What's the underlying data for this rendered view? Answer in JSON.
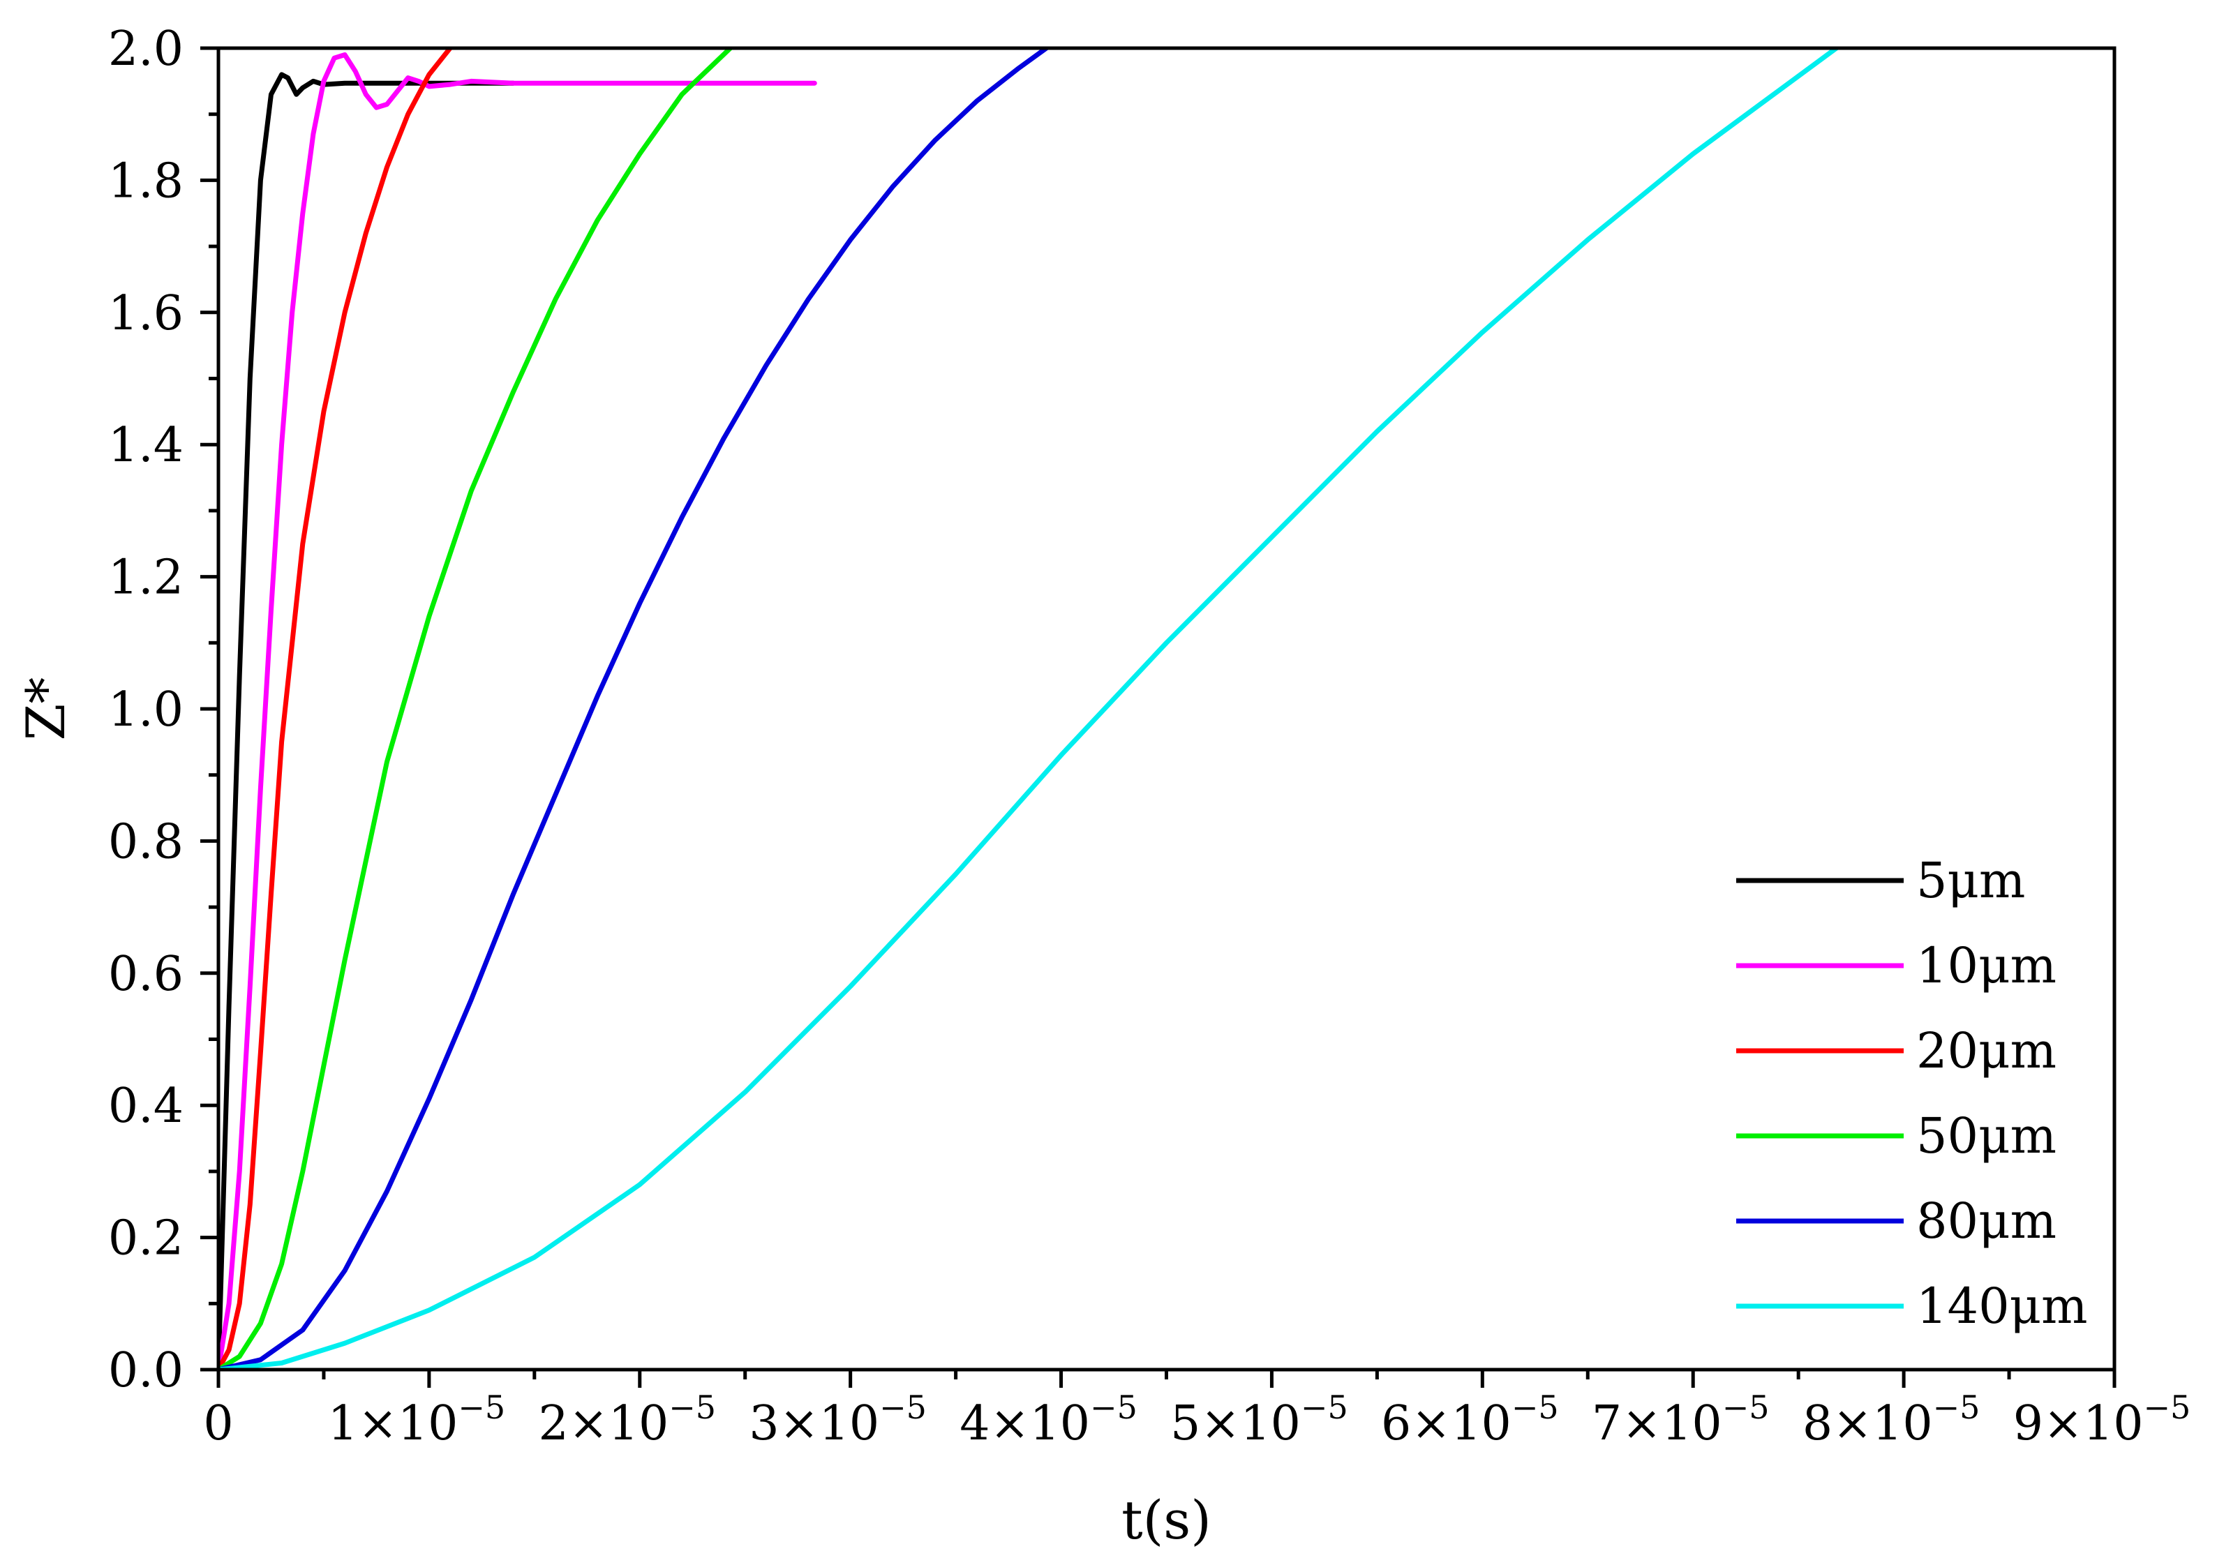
{
  "chart_data": {
    "type": "line",
    "title": "",
    "xlabel": "t(s)",
    "ylabel": "Z*",
    "xlim": [
      0,
      9e-05
    ],
    "ylim": [
      0,
      2.0
    ],
    "grid": false,
    "legend_position": "bottom-right",
    "x_ticks": [
      {
        "value": 0,
        "label": "0",
        "exp": ""
      },
      {
        "value": 1e-05,
        "label": "1×10",
        "exp": "−5"
      },
      {
        "value": 2e-05,
        "label": "2×10",
        "exp": "−5"
      },
      {
        "value": 3e-05,
        "label": "3×10",
        "exp": "−5"
      },
      {
        "value": 4e-05,
        "label": "4×10",
        "exp": "−5"
      },
      {
        "value": 5e-05,
        "label": "5×10",
        "exp": "−5"
      },
      {
        "value": 6e-05,
        "label": "6×10",
        "exp": "−5"
      },
      {
        "value": 7e-05,
        "label": "7×10",
        "exp": "−5"
      },
      {
        "value": 8e-05,
        "label": "8×10",
        "exp": "−5"
      },
      {
        "value": 9e-05,
        "label": "9×10",
        "exp": "−5"
      }
    ],
    "y_ticks": [
      {
        "value": 0.0,
        "label": "0.0"
      },
      {
        "value": 0.2,
        "label": "0.2"
      },
      {
        "value": 0.4,
        "label": "0.4"
      },
      {
        "value": 0.6,
        "label": "0.6"
      },
      {
        "value": 0.8,
        "label": "0.8"
      },
      {
        "value": 1.0,
        "label": "1.0"
      },
      {
        "value": 1.2,
        "label": "1.2"
      },
      {
        "value": 1.4,
        "label": "1.4"
      },
      {
        "value": 1.6,
        "label": "1.6"
      },
      {
        "value": 1.8,
        "label": "1.8"
      },
      {
        "value": 2.0,
        "label": "2.0"
      }
    ],
    "series": [
      {
        "name": "5μm",
        "color": "#000000",
        "x": [
          0,
          5e-07,
          1e-06,
          1.5e-06,
          2e-06,
          2.5e-06,
          3e-06,
          3.3e-06,
          3.7e-06,
          4e-06,
          4.5e-06,
          5e-06,
          6e-06,
          8e-06,
          1e-05,
          1.4e-05
        ],
        "y": [
          0,
          0.55,
          1.05,
          1.5,
          1.8,
          1.93,
          1.96,
          1.955,
          1.93,
          1.94,
          1.95,
          1.945,
          1.947,
          1.947,
          1.947,
          1.947
        ]
      },
      {
        "name": "10μm",
        "color": "#ff00ff",
        "x": [
          0,
          5e-07,
          1e-06,
          1.5e-06,
          2e-06,
          2.5e-06,
          3e-06,
          3.5e-06,
          4e-06,
          4.5e-06,
          5e-06,
          5.5e-06,
          6e-06,
          6.5e-06,
          7e-06,
          7.5e-06,
          8e-06,
          8.5e-06,
          9e-06,
          9.5e-06,
          1e-05,
          1.1e-05,
          1.2e-05,
          1.4e-05,
          1.8e-05,
          2.4e-05,
          2.83e-05
        ],
        "y": [
          0,
          0.1,
          0.3,
          0.58,
          0.88,
          1.15,
          1.4,
          1.6,
          1.75,
          1.87,
          1.95,
          1.985,
          1.99,
          1.965,
          1.93,
          1.91,
          1.915,
          1.935,
          1.955,
          1.95,
          1.942,
          1.945,
          1.95,
          1.947,
          1.947,
          1.947,
          1.947
        ]
      },
      {
        "name": "20μm",
        "color": "#ff0000",
        "x": [
          0,
          5e-07,
          1e-06,
          1.5e-06,
          2e-06,
          2.5e-06,
          3e-06,
          4e-06,
          5e-06,
          6e-06,
          7e-06,
          8e-06,
          9e-06,
          1e-05,
          1.1e-05
        ],
        "y": [
          0,
          0.03,
          0.1,
          0.25,
          0.48,
          0.72,
          0.95,
          1.25,
          1.45,
          1.6,
          1.72,
          1.82,
          1.9,
          1.96,
          2.0
        ]
      },
      {
        "name": "50μm",
        "color": "#00ee00",
        "x": [
          0,
          1e-06,
          2e-06,
          3e-06,
          4e-06,
          5e-06,
          6e-06,
          8e-06,
          1e-05,
          1.2e-05,
          1.4e-05,
          1.6e-05,
          1.8e-05,
          2e-05,
          2.2e-05,
          2.43e-05
        ],
        "y": [
          0,
          0.02,
          0.07,
          0.16,
          0.3,
          0.46,
          0.62,
          0.92,
          1.14,
          1.33,
          1.48,
          1.62,
          1.74,
          1.84,
          1.93,
          2.0
        ]
      },
      {
        "name": "80μm",
        "color": "#0000dd",
        "x": [
          0,
          2e-06,
          4e-06,
          6e-06,
          8e-06,
          1e-05,
          1.2e-05,
          1.4e-05,
          1.6e-05,
          1.8e-05,
          2e-05,
          2.2e-05,
          2.4e-05,
          2.6e-05,
          2.8e-05,
          3e-05,
          3.2e-05,
          3.4e-05,
          3.6e-05,
          3.8e-05,
          3.93e-05
        ],
        "y": [
          0,
          0.015,
          0.06,
          0.15,
          0.27,
          0.41,
          0.56,
          0.72,
          0.87,
          1.02,
          1.16,
          1.29,
          1.41,
          1.52,
          1.62,
          1.71,
          1.79,
          1.86,
          1.92,
          1.97,
          2.0
        ]
      },
      {
        "name": "140μm",
        "color": "#00eeee",
        "x": [
          0,
          3e-06,
          6e-06,
          1e-05,
          1.5e-05,
          2e-05,
          2.5e-05,
          3e-05,
          3.5e-05,
          4e-05,
          4.5e-05,
          5e-05,
          5.5e-05,
          6e-05,
          6.5e-05,
          7e-05,
          7.68e-05
        ],
        "y": [
          0,
          0.01,
          0.04,
          0.09,
          0.17,
          0.28,
          0.42,
          0.58,
          0.75,
          0.93,
          1.1,
          1.26,
          1.42,
          1.57,
          1.71,
          1.84,
          2.0
        ]
      }
    ]
  }
}
